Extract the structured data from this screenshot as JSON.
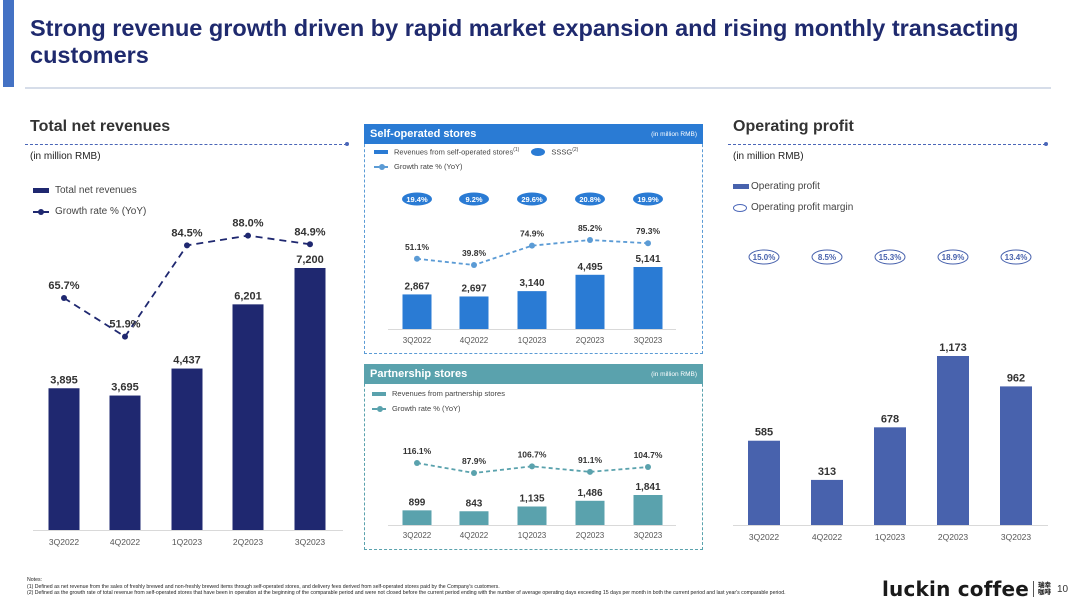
{
  "page": {
    "title": "Strong revenue growth driven by rapid market expansion and rising monthly transacting customers",
    "page_number": "10",
    "logo_text": "luckin coffee",
    "logo_cn_line1": "瑞幸",
    "logo_cn_line2": "咖啡",
    "notes_label": "Notes:",
    "notes": [
      "(1)  Defined as net revenue from the sales of freshly brewed and non-freshly brewed items through self-operated stores, and delivery fees derived from self-operated stores paid by the Company's customers.",
      "(2)  Defined as the growth rate of total revenue from self-operated stores that have been in operation at the beginning of the comparable period and were not closed before the current period ending with the number of average operating days exceeding 15 days per month in both the current period and last year's comparable period."
    ]
  },
  "colors": {
    "navy": "#1f2870",
    "self_blue": "#2a7bd4",
    "self_line": "#5b9bd5",
    "partner_teal": "#5aa2ad",
    "profit_blue": "#4862ad",
    "title": "#1f2a6e",
    "accent": "#4472c4"
  },
  "chart_data": [
    {
      "id": "total_net_revenues",
      "type": "bar",
      "title": "Total net revenues",
      "unit": "(in million RMB)",
      "categories": [
        "3Q2022",
        "4Q2022",
        "1Q2023",
        "2Q2023",
        "3Q2023"
      ],
      "series": [
        {
          "name": "Total net revenues",
          "kind": "bar",
          "values": [
            3895,
            3695,
            4437,
            6201,
            7200
          ],
          "labels": [
            "3,895",
            "3,695",
            "4,437",
            "6,201",
            "7,200"
          ]
        },
        {
          "name": "Growth rate % (YoY)",
          "kind": "line",
          "values": [
            65.7,
            51.9,
            84.5,
            88.0,
            84.9
          ],
          "labels": [
            "65.7%",
            "51.9%",
            "84.5%",
            "88.0%",
            "84.9%"
          ]
        }
      ],
      "xlabel": "",
      "ylabel": "",
      "grid": false,
      "legend": "top-left"
    },
    {
      "id": "self_operated_stores",
      "type": "bar",
      "title": "Self-operated stores",
      "unit": "(in million RMB)",
      "categories": [
        "3Q2022",
        "4Q2022",
        "1Q2023",
        "2Q2023",
        "3Q2023"
      ],
      "series": [
        {
          "name": "Revenues from self-operated stores",
          "footnote": "(1)",
          "kind": "bar",
          "values": [
            2867,
            2697,
            3140,
            4495,
            5141
          ],
          "labels": [
            "2,867",
            "2,697",
            "3,140",
            "4,495",
            "5,141"
          ]
        },
        {
          "name": "Growth rate % (YoY)",
          "kind": "line",
          "values": [
            51.1,
            39.8,
            74.9,
            85.2,
            79.3
          ],
          "labels": [
            "51.1%",
            "39.8%",
            "74.9%",
            "85.2%",
            "79.3%"
          ]
        },
        {
          "name": "SSSG",
          "footnote": "(2)",
          "kind": "badge",
          "values": [
            19.4,
            9.2,
            29.6,
            20.8,
            19.9
          ],
          "labels": [
            "19.4%",
            "9.2%",
            "29.6%",
            "20.8%",
            "19.9%"
          ]
        }
      ],
      "grid": false,
      "legend": "top-left"
    },
    {
      "id": "partnership_stores",
      "type": "bar",
      "title": "Partnership stores",
      "unit": "(in million RMB)",
      "categories": [
        "3Q2022",
        "4Q2022",
        "1Q2023",
        "2Q2023",
        "3Q2023"
      ],
      "series": [
        {
          "name": "Revenues from partnership stores",
          "kind": "bar",
          "values": [
            899,
            843,
            1135,
            1486,
            1841
          ],
          "labels": [
            "899",
            "843",
            "1,135",
            "1,486",
            "1,841"
          ]
        },
        {
          "name": "Growth rate % (YoY)",
          "kind": "line",
          "values": [
            116.1,
            87.9,
            106.7,
            91.1,
            104.7
          ],
          "labels": [
            "116.1%",
            "87.9%",
            "106.7%",
            "91.1%",
            "104.7%"
          ]
        }
      ],
      "grid": false,
      "legend": "top-left"
    },
    {
      "id": "operating_profit",
      "type": "bar",
      "title": "Operating profit",
      "unit": "(in million RMB)",
      "categories": [
        "3Q2022",
        "4Q2022",
        "1Q2023",
        "2Q2023",
        "3Q2023"
      ],
      "series": [
        {
          "name": "Operating profit",
          "kind": "bar",
          "values": [
            585,
            313,
            678,
            1173,
            962
          ],
          "labels": [
            "585",
            "313",
            "678",
            "1,173",
            "962"
          ]
        },
        {
          "name": "Operating profit margin",
          "kind": "badge",
          "values": [
            15.0,
            8.5,
            15.3,
            18.9,
            13.4
          ],
          "labels": [
            "15.0%",
            "8.5%",
            "15.3%",
            "18.9%",
            "13.4%"
          ]
        }
      ],
      "grid": false,
      "legend": "top-left"
    }
  ]
}
